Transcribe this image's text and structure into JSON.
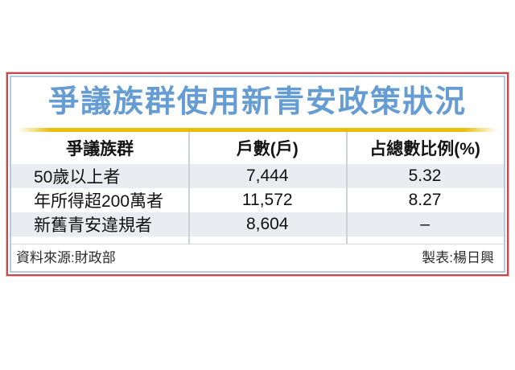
{
  "title": "爭議族群使用新青安政策狀況",
  "table": {
    "columns": {
      "group": "爭議族群",
      "households": "戶數(戶)",
      "share": "占總數比例(%)"
    },
    "rows": [
      {
        "group": "50歲以上者",
        "households": "7,444",
        "share": "5.32"
      },
      {
        "group": "年所得超200萬者",
        "households": "11,572",
        "share": "8.27"
      },
      {
        "group": "新舊青安違規者",
        "households": "8,604",
        "share": "–"
      }
    ]
  },
  "footer": {
    "source": "資料來源:財政部",
    "credit": "製表:楊日興"
  },
  "colors": {
    "title_blue": "#649cd3",
    "gold_rule": "#e8be06",
    "border_red": "#c4494e",
    "border_inner_blue": "#b6cbda",
    "row_stripe": "#e9edf2"
  },
  "chart_data": {
    "type": "table",
    "title": "爭議族群使用新青安政策狀況",
    "columns": [
      "爭議族群",
      "戶數(戶)",
      "占總數比例(%)"
    ],
    "rows": [
      [
        "50歲以上者",
        7444,
        5.32
      ],
      [
        "年所得超200萬者",
        11572,
        8.27
      ],
      [
        "新舊青安違規者",
        8604,
        null
      ]
    ],
    "notes": {
      "source": "資料來源:財政部",
      "credit": "製表:楊日興"
    }
  }
}
